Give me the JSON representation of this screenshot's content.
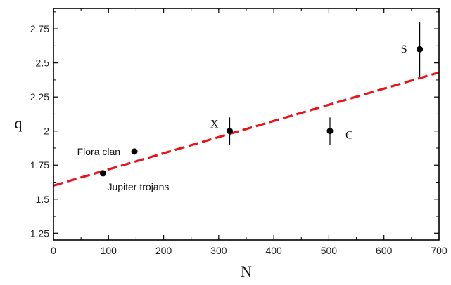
{
  "chart_data": {
    "type": "scatter",
    "title": "",
    "xlabel": "N",
    "ylabel": "q",
    "xlim": [
      0,
      700
    ],
    "ylim": [
      1.2,
      2.9
    ],
    "grid": false,
    "x_ticks": [
      0,
      100,
      200,
      300,
      400,
      500,
      600,
      700
    ],
    "y_ticks": [
      1.25,
      1.5,
      1.75,
      2,
      2.25,
      2.5,
      2.75
    ],
    "points": [
      {
        "label": "Jupiter trojans",
        "x": 90,
        "y": 1.69,
        "yerr": null
      },
      {
        "label": "Flora clan",
        "x": 147,
        "y": 1.85,
        "yerr": null
      },
      {
        "label": "X",
        "x": 320,
        "y": 2.0,
        "yerr": 0.1
      },
      {
        "label": "C",
        "x": 502,
        "y": 2.0,
        "yerr": 0.1
      },
      {
        "label": "S",
        "x": 665,
        "y": 2.6,
        "yerr": 0.2
      }
    ],
    "fit_line": {
      "style": "dashed",
      "color": "#e8141c",
      "x": [
        0,
        700
      ],
      "y": [
        1.6,
        2.43
      ]
    },
    "colors": {
      "points": "#000000",
      "fit": "#e8141c",
      "frame": "#000000"
    }
  }
}
